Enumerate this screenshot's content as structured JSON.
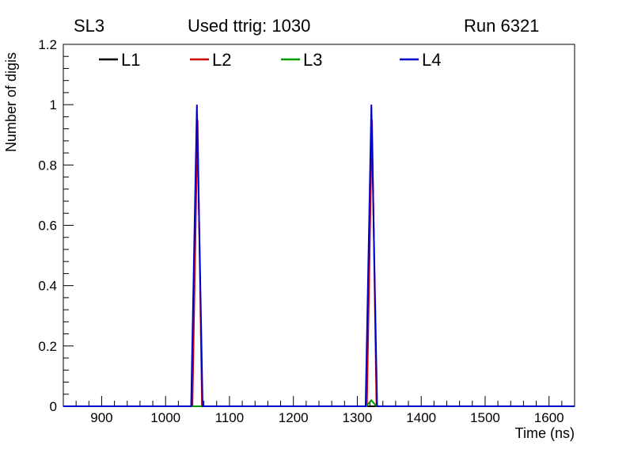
{
  "header": {
    "left": "SL3",
    "center": "Used ttrig: 1030",
    "right": "Run 6321"
  },
  "chart_data": {
    "type": "line",
    "title": "Used ttrig: 1030",
    "subtitle_left": "SL3",
    "subtitle_right": "Run 6321",
    "xlabel": "Time (ns)",
    "ylabel": "Number of digis",
    "xlim": [
      840,
      1640
    ],
    "ylim": [
      0,
      1.2
    ],
    "x_ticks": [
      900,
      1000,
      1100,
      1200,
      1300,
      1400,
      1500,
      1600
    ],
    "x_minor_step": 20,
    "y_ticks": [
      0,
      0.2,
      0.4,
      0.6,
      0.8,
      1,
      1.2
    ],
    "y_minor_step": 0.04,
    "grid": false,
    "legend": {
      "position": "top-inside",
      "entries": [
        {
          "label": "L1",
          "color": "#000000"
        },
        {
          "label": "L2",
          "color": "#cc0000"
        },
        {
          "label": "L3",
          "color": "#009900"
        },
        {
          "label": "L4",
          "color": "#0000cc"
        }
      ]
    },
    "series": [
      {
        "name": "L1",
        "color": "#000000",
        "points": [
          [
            840,
            0
          ],
          [
            1640,
            0
          ]
        ]
      },
      {
        "name": "L2",
        "color": "#cc0000",
        "points": [
          [
            840,
            0
          ],
          [
            1042,
            0
          ],
          [
            1050,
            0.95
          ],
          [
            1057,
            0
          ],
          [
            1315,
            0
          ],
          [
            1323,
            0.95
          ],
          [
            1330,
            0
          ],
          [
            1640,
            0
          ]
        ]
      },
      {
        "name": "L3",
        "color": "#009900",
        "points": [
          [
            840,
            0
          ],
          [
            1314,
            0
          ],
          [
            1322,
            0.02
          ],
          [
            1330,
            0
          ],
          [
            1640,
            0
          ]
        ]
      },
      {
        "name": "L4",
        "color": "#0000cc",
        "points": [
          [
            840,
            0
          ],
          [
            1040,
            0
          ],
          [
            1049,
            1.0
          ],
          [
            1058,
            0
          ],
          [
            1313,
            0
          ],
          [
            1322,
            1.0
          ],
          [
            1331,
            0
          ],
          [
            1640,
            0
          ]
        ]
      }
    ]
  }
}
